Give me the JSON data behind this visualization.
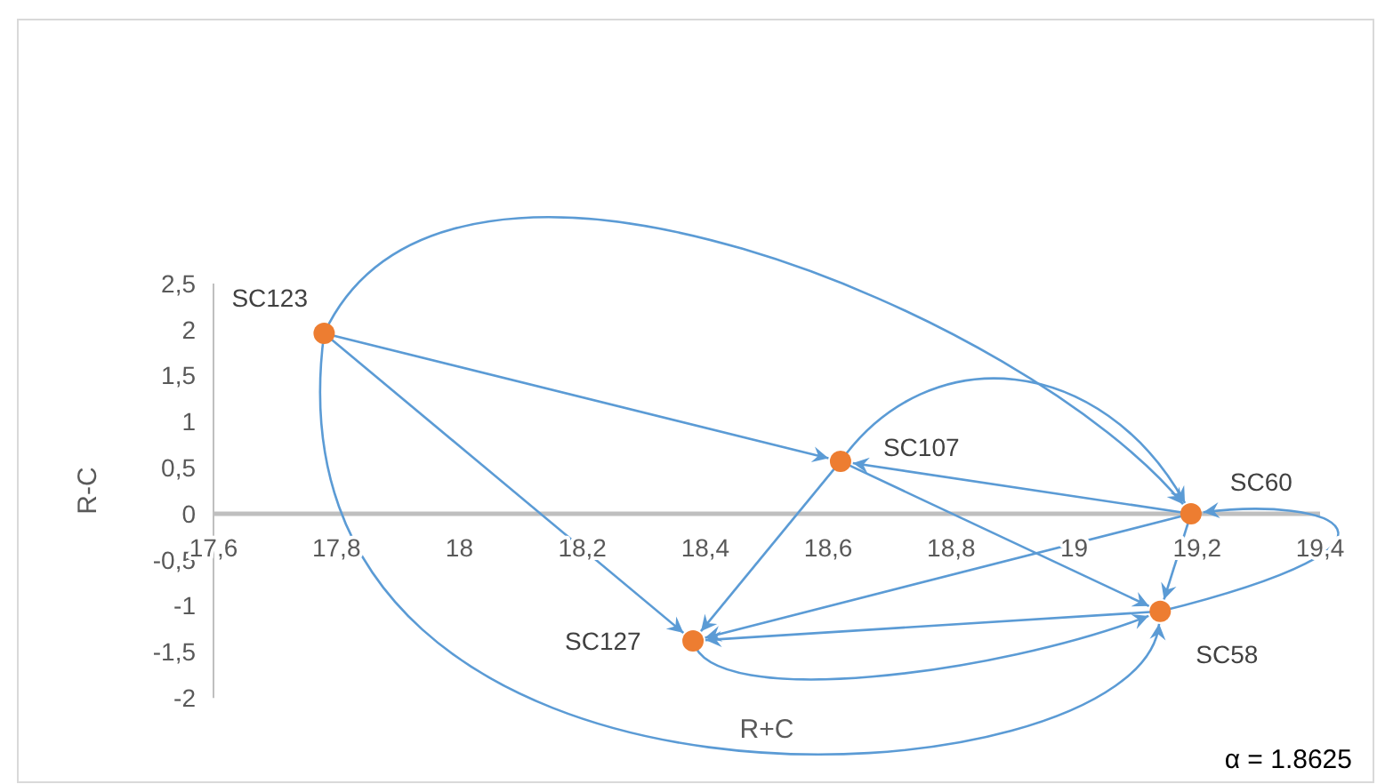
{
  "chart_data": {
    "type": "scatter",
    "xlabel": "R+C",
    "ylabel": "R-C",
    "x": [
      17.78,
      18.62,
      19.19,
      19.14,
      18.38
    ],
    "series": [
      {
        "color": "#ed7d31",
        "values": [
          1.96,
          0.57,
          0,
          -1.06,
          -1.38
        ]
      }
    ],
    "marker": "circle",
    "grid": false,
    "xlim": [
      17.6,
      19.4
    ],
    "ylim": [
      -2,
      2.5
    ],
    "xticks": [
      {
        "value": 17.6,
        "label": "17,6"
      },
      {
        "value": 17.8,
        "label": "17,8"
      },
      18,
      {
        "value": 18.2,
        "label": "18,2"
      },
      {
        "value": 18.4,
        "label": "18,4"
      },
      {
        "value": 18.6,
        "label": "18,6"
      },
      {
        "value": 18.8,
        "label": "18,8"
      },
      19,
      {
        "value": 19.2,
        "label": "19,2"
      },
      {
        "value": 19.4,
        "label": "19,4"
      }
    ],
    "yticks": [
      -2,
      {
        "value": -1.5,
        "label": "-1,5"
      },
      -1,
      {
        "value": -0.5,
        "label": "-0,5"
      },
      0,
      {
        "value": 0.5,
        "label": "0,5"
      },
      1,
      {
        "value": 1.5,
        "label": "1,5"
      },
      2,
      {
        "value": 2.5,
        "label": "2,5"
      }
    ],
    "annotations": [
      {
        "text": "SC123",
        "x": 17.78,
        "y": 1.96
      },
      {
        "text": "SC107",
        "x": 18.62,
        "y": 0.57
      },
      {
        "text": "SC60",
        "x": 19.19,
        "y": 0
      },
      {
        "text": "SC58",
        "x": 19.14,
        "y": -1.06
      },
      {
        "text": "SC127",
        "x": 18.38,
        "y": -1.38
      },
      "α = 1.8625"
    ]
  }
}
